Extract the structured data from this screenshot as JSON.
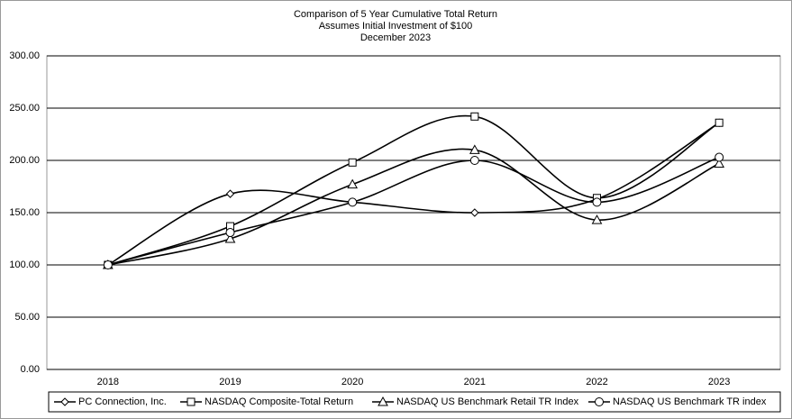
{
  "chart_data": {
    "type": "line",
    "title": "Comparison of 5 Year Cumulative Total Return",
    "subtitle": [
      "Assumes Initial Investment of $100",
      "December 2023"
    ],
    "categories": [
      "2018",
      "2019",
      "2020",
      "2021",
      "2022",
      "2023"
    ],
    "series": [
      {
        "name": "PC Connection, Inc.",
        "color": "#000000",
        "marker": "diamond",
        "values": [
          100,
          168,
          160,
          150,
          163,
          236
        ]
      },
      {
        "name": "NASDAQ Composite-Total Return",
        "color": "#000000",
        "marker": "square",
        "values": [
          100,
          137,
          198,
          242,
          164,
          236
        ]
      },
      {
        "name": "NASDAQ US Benchmark Retail TR Index",
        "color": "#000000",
        "marker": "triangle",
        "values": [
          100,
          125,
          177,
          210,
          143,
          197
        ]
      },
      {
        "name": "NASDAQ US Benchmark TR index",
        "color": "#000000",
        "marker": "circle",
        "values": [
          100,
          131,
          160,
          200,
          160,
          203
        ]
      }
    ],
    "ylim": [
      0,
      300
    ],
    "yticks": [
      {
        "value": 0,
        "label": "0.00"
      },
      {
        "value": 50,
        "label": "50.00"
      },
      {
        "value": 100,
        "label": "100.00"
      },
      {
        "value": 150,
        "label": "150.00"
      },
      {
        "value": 200,
        "label": "200.00"
      },
      {
        "value": 250,
        "label": "250.00"
      },
      {
        "value": 300,
        "label": "300.00"
      }
    ],
    "grid": true,
    "smooth": true,
    "legend": "bottom"
  }
}
